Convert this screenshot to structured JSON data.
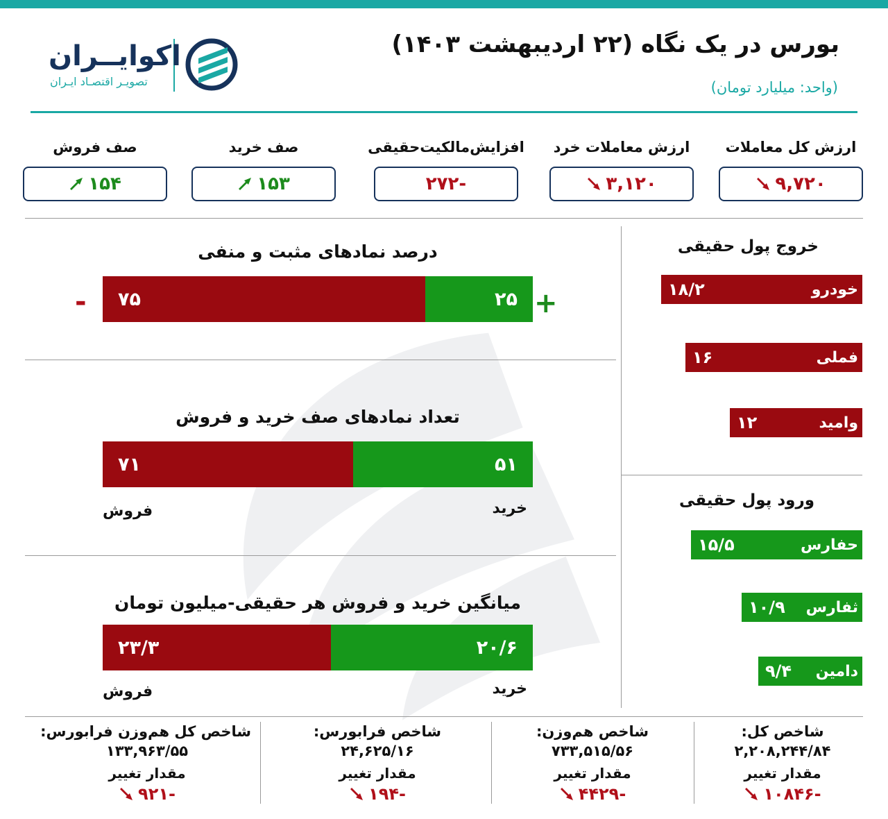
{
  "header": {
    "title": "بورس در یک نگاه (۲۲ اردیبهشت ۱۴۰۳)",
    "unit": "(واحد: میلیارد تومان)",
    "logo_name": "اکوایــران",
    "logo_tagline": "تصویـر اقتصـاد ایـران"
  },
  "stats": [
    {
      "label": "ارزش کل معاملات",
      "value": "۹,۷۲۰",
      "trend": "down",
      "color": "#b0101a"
    },
    {
      "label": "ارزش معاملات خرد",
      "value": "۳,۱۲۰",
      "trend": "down",
      "color": "#b0101a"
    },
    {
      "label": "افزایش‌مالکیت‌حقیقی",
      "value": "-۲۷۲",
      "trend": "none",
      "color": "#b0101a"
    },
    {
      "label": "صف خرید",
      "value": "۱۵۳",
      "trend": "up",
      "color": "#1d8b1d"
    },
    {
      "label": "صف فروش",
      "value": "۱۵۴",
      "trend": "up",
      "color": "#1d8b1d"
    }
  ],
  "chart_data": [
    {
      "type": "bar",
      "title": "درصد نمادهای مثبت و منفی",
      "series": [
        {
          "name": "+",
          "values": [
            25
          ],
          "label": "۲۵",
          "color": "#16981b"
        },
        {
          "name": "-",
          "values": [
            75
          ],
          "label": "۷۵",
          "color": "#9a0a10"
        }
      ],
      "left_sign": "-",
      "right_sign": "+"
    },
    {
      "type": "bar",
      "title": "تعداد نمادهای صف خرید و فروش",
      "series": [
        {
          "name": "خرید",
          "values": [
            51
          ],
          "label": "۵۱",
          "color": "#16981b"
        },
        {
          "name": "فروش",
          "values": [
            71
          ],
          "label": "۷۱",
          "color": "#9a0a10"
        }
      ]
    },
    {
      "type": "bar",
      "title": "میانگین خرید و فروش هر حقیقی-میلیون تومان",
      "series": [
        {
          "name": "خرید",
          "values": [
            20.6
          ],
          "label": "۲۰/۶",
          "color": "#16981b"
        },
        {
          "name": "فروش",
          "values": [
            23.3
          ],
          "label": "۲۳/۳",
          "color": "#9a0a10"
        }
      ]
    },
    {
      "type": "bar",
      "title": "خروج پول حقیقی",
      "categories": [
        "خودرو",
        "فملی",
        "وامید"
      ],
      "values": [
        18.2,
        16,
        12
      ],
      "labels": [
        "۱۸/۲",
        "۱۶",
        "۱۲"
      ],
      "color": "#9a0a10"
    },
    {
      "type": "bar",
      "title": "ورود پول حقیقی",
      "categories": [
        "حفارس",
        "ثفارس",
        "دامین"
      ],
      "values": [
        15.5,
        10.9,
        9.4
      ],
      "labels": [
        "۱۵/۵",
        "۱۰/۹",
        "۹/۴"
      ],
      "color": "#16981b"
    }
  ],
  "indices": [
    {
      "title": "شاخص کل:",
      "value": "۲,۲۰۸,۲۴۴/۸۴",
      "change_label": "مقدار تغییر",
      "change": "-۱۰۸۴۶",
      "trend": "down"
    },
    {
      "title": "شاخص هم‌وزن:",
      "value": "۷۳۳,۵۱۵/۵۶",
      "change_label": "مقدار تغییر",
      "change": "-۴۴۲۹",
      "trend": "down"
    },
    {
      "title": "شاخص فرابورس:",
      "value": "۲۴,۶۲۵/۱۶",
      "change_label": "مقدار تغییر",
      "change": "-۱۹۴",
      "trend": "down"
    },
    {
      "title": "شاخص کل هم‌وزن فرابورس:",
      "value": "۱۳۳,۹۶۳/۵۵",
      "change_label": "مقدار تغییر",
      "change": "-۹۲۱",
      "trend": "down"
    }
  ]
}
